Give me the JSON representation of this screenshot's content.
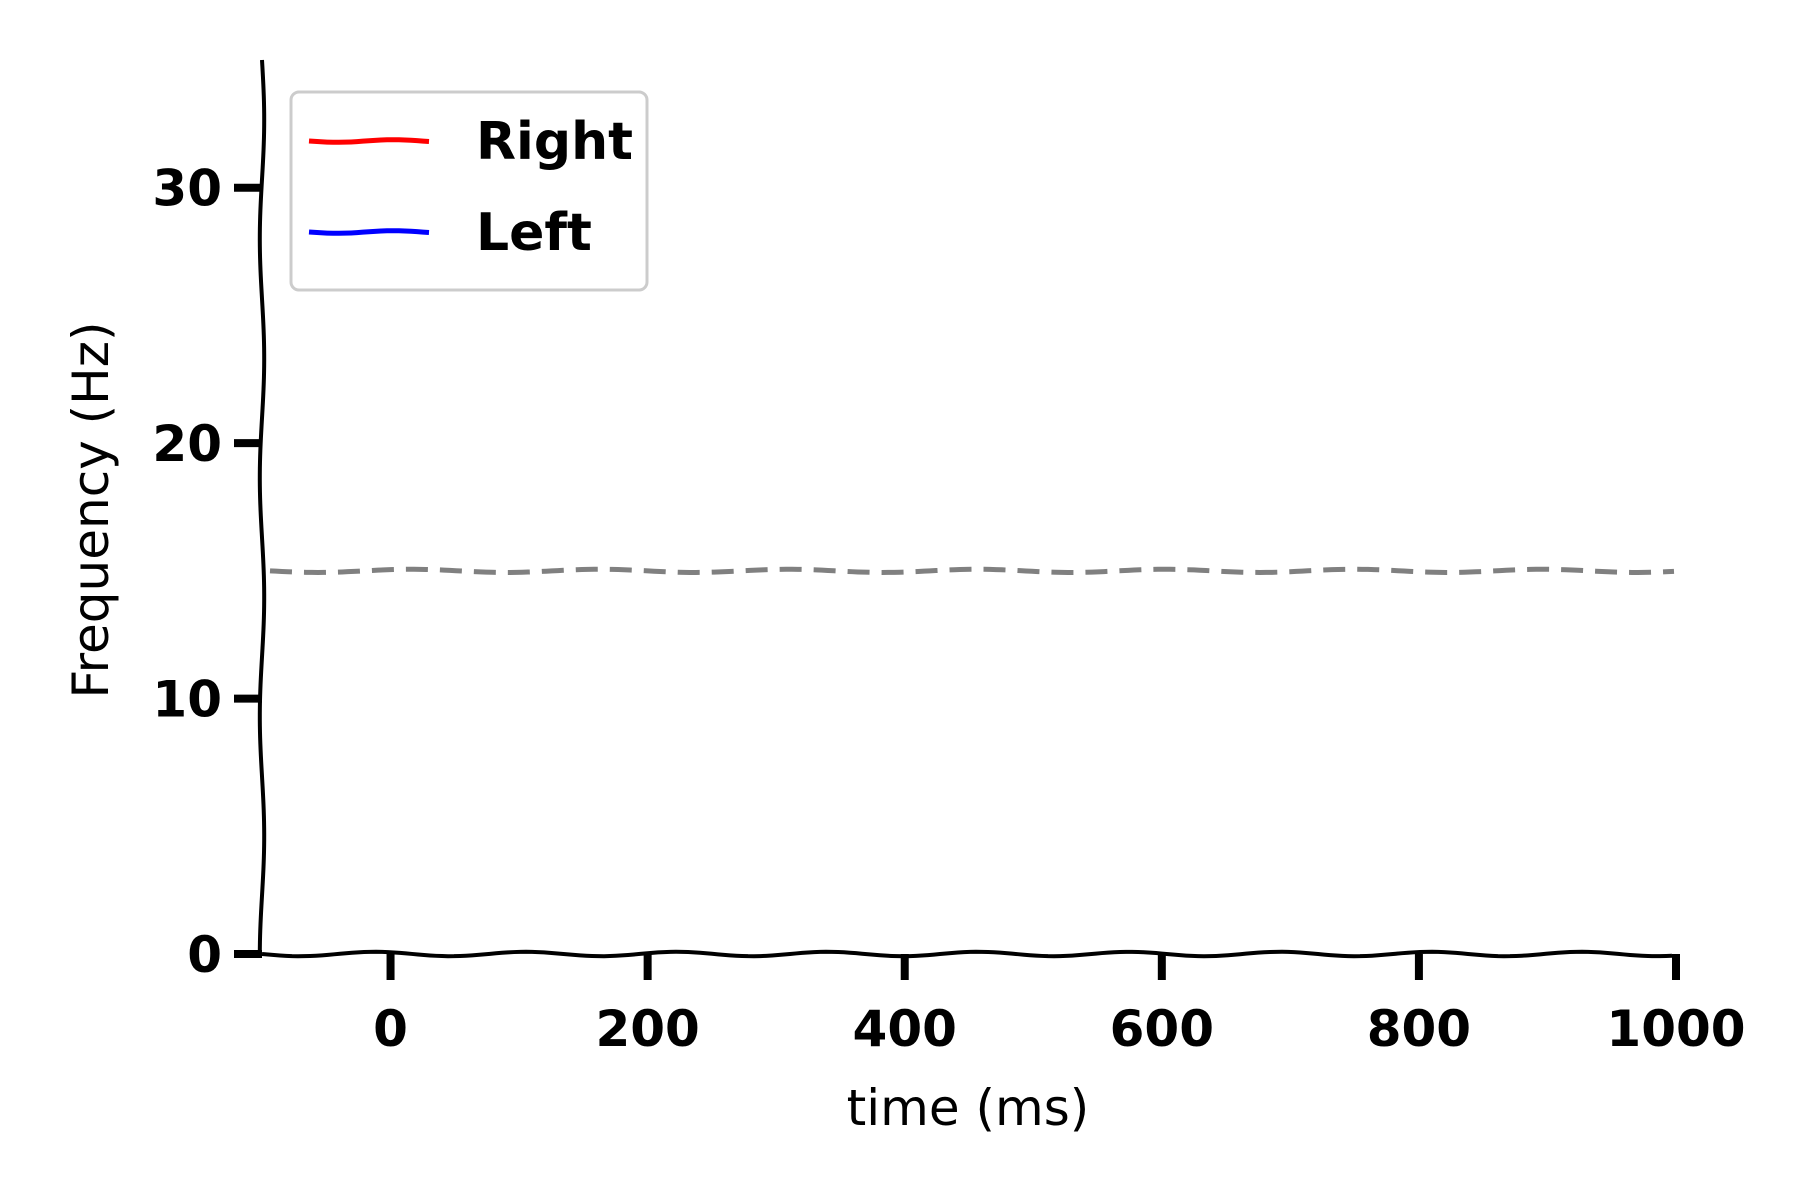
{
  "chart_data": {
    "type": "line",
    "title": "",
    "xlabel": "time (ms)",
    "ylabel": "Frequency (Hz)",
    "xlim": [
      -100,
      1000
    ],
    "ylim": [
      0,
      35
    ],
    "x_ticks": [
      0,
      200,
      400,
      600,
      800,
      1000
    ],
    "y_ticks": [
      0,
      10,
      20,
      30
    ],
    "x_tick_labels": [
      "0",
      "200",
      "400",
      "600",
      "800",
      "1000"
    ],
    "y_tick_labels": [
      "0",
      "10",
      "20",
      "30"
    ],
    "grid": false,
    "legend_position": "top-left",
    "series": [
      {
        "name": "Right",
        "color": "#ff0000",
        "x": [],
        "y": []
      },
      {
        "name": "Left",
        "color": "#0000ff",
        "x": [],
        "y": []
      }
    ],
    "reference_lines": [
      {
        "orientation": "horizontal",
        "y": 15,
        "style": "dashed",
        "color": "#808080"
      }
    ]
  }
}
